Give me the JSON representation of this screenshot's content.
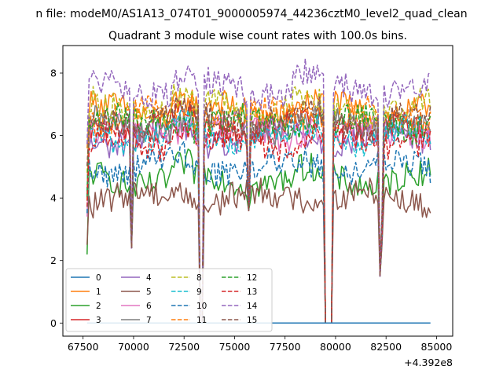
{
  "figure": {
    "suptitle": "n file: modeM0/AS1A13_074T01_9000005974_44236cztM0_level2_quad_clean"
  },
  "chart_data": {
    "type": "line",
    "title": "Quadrant 3 module wise count rates with 100.0s bins.",
    "xlabel": "",
    "ylabel": "",
    "x_offset_label": "+4.392e8",
    "xlim": [
      66500,
      85800
    ],
    "ylim": [
      -0.42,
      8.88
    ],
    "x_ticks": [
      67500,
      70000,
      72500,
      75000,
      77500,
      80000,
      82500,
      85000
    ],
    "x_tick_labels": [
      "67500",
      "70000",
      "72500",
      "75000",
      "77500",
      "80000",
      "82500",
      "85000"
    ],
    "y_ticks": [
      0,
      2,
      4,
      6,
      8
    ],
    "y_tick_labels": [
      "0",
      "2",
      "4",
      "6",
      "8"
    ],
    "grid": false,
    "legend": {
      "position": "lower-left",
      "ncol": 4
    },
    "time_range": [
      67700,
      84700
    ],
    "dips": [
      {
        "start": 69800,
        "end": 69950,
        "min": 2.4
      },
      {
        "start": 73200,
        "end": 73500,
        "min": 0.0
      },
      {
        "start": 75600,
        "end": 75800,
        "min": 3.6
      },
      {
        "start": 79400,
        "end": 79900,
        "min": 0.0
      },
      {
        "start": 82100,
        "end": 82350,
        "min": 1.5
      }
    ],
    "series": [
      {
        "name": "0",
        "color": "#1f77b4",
        "dash": "solid",
        "values_constant": 0
      },
      {
        "name": "1",
        "color": "#ff7f0e",
        "dash": "solid",
        "base": 6.8
      },
      {
        "name": "2",
        "color": "#2ca02c",
        "dash": "solid",
        "base": 4.6
      },
      {
        "name": "3",
        "color": "#d62728",
        "dash": "solid",
        "base": 6.2
      },
      {
        "name": "4",
        "color": "#9467bd",
        "dash": "solid",
        "base": 5.9
      },
      {
        "name": "5",
        "color": "#8c564b",
        "dash": "solid",
        "base": 4.0
      },
      {
        "name": "6",
        "color": "#e377c2",
        "dash": "solid",
        "base": 6.1
      },
      {
        "name": "7",
        "color": "#7f7f7f",
        "dash": "solid",
        "base": 6.3
      },
      {
        "name": "8",
        "color": "#bcbd22",
        "dash": "dashed",
        "base": 6.9
      },
      {
        "name": "9",
        "color": "#17becf",
        "dash": "dashed",
        "base": 6.0
      },
      {
        "name": "10",
        "color": "#1f77b4",
        "dash": "dashed",
        "base": 5.0
      },
      {
        "name": "11",
        "color": "#ff7f0e",
        "dash": "dashed",
        "base": 6.6
      },
      {
        "name": "12",
        "color": "#2ca02c",
        "dash": "dashed",
        "base": 6.4
      },
      {
        "name": "13",
        "color": "#d62728",
        "dash": "dashed",
        "base": 5.8
      },
      {
        "name": "14",
        "color": "#9467bd",
        "dash": "dashed",
        "base": 7.5
      },
      {
        "name": "15",
        "color": "#8c564b",
        "dash": "dashed",
        "base": 6.5
      }
    ]
  }
}
